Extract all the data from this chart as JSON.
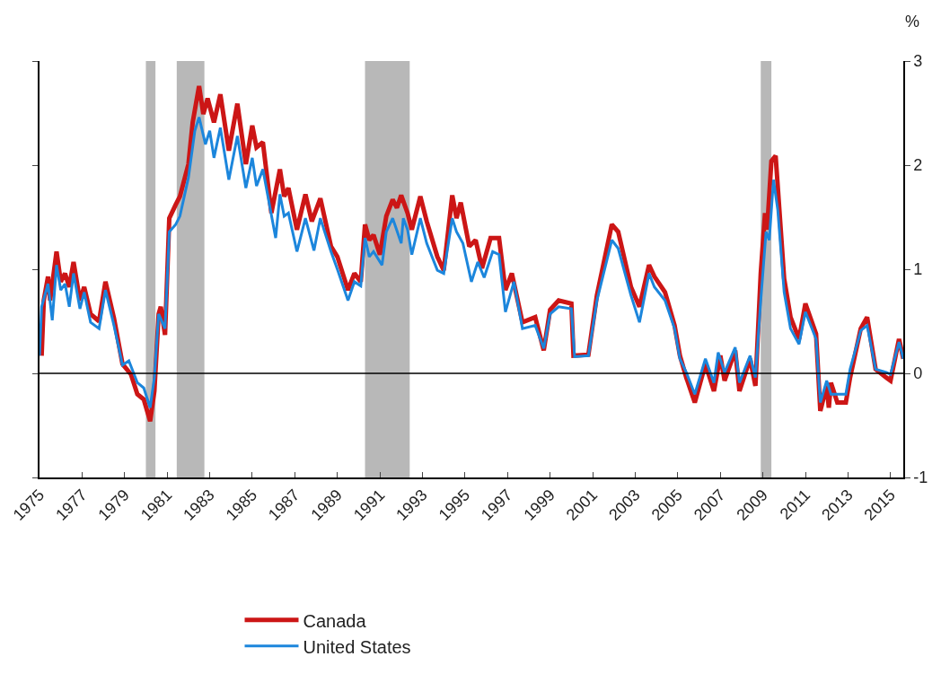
{
  "chart_data": {
    "type": "line",
    "ylabel": "%",
    "xlim": [
      1975,
      2015.6
    ],
    "xticks": [
      1975,
      1977,
      1979,
      1981,
      1983,
      1985,
      1987,
      1989,
      1991,
      1993,
      1995,
      1997,
      1999,
      2001,
      2003,
      2005,
      2007,
      2009,
      2011,
      2013,
      2015
    ],
    "ylim": [
      -1,
      3
    ],
    "yticks": [
      -1,
      0,
      1,
      2,
      3
    ],
    "grid": false,
    "legend": "bottom",
    "line_style": "solid",
    "marker": "none",
    "ref_lines": [
      {
        "axis": "y",
        "value": 0,
        "color": "#000000"
      }
    ],
    "bands": [
      {
        "axis": "x",
        "from": 1980.0,
        "to": 1980.45,
        "color": "#b8b8b8"
      },
      {
        "axis": "x",
        "from": 1981.45,
        "to": 1982.75,
        "color": "#b8b8b8"
      },
      {
        "axis": "x",
        "from": 1990.3,
        "to": 1992.4,
        "color": "#b8b8b8"
      },
      {
        "axis": "x",
        "from": 2008.9,
        "to": 2009.4,
        "color": "#b8b8b8"
      }
    ],
    "series": [
      {
        "name": "Canada",
        "color": "#cc1616",
        "x": [
          1975.1,
          1975.2,
          1975.4,
          1975.5,
          1975.8,
          1976.0,
          1976.2,
          1976.4,
          1976.6,
          1976.9,
          1977.1,
          1977.4,
          1977.8,
          1978.1,
          1978.5,
          1978.9,
          1979.3,
          1979.6,
          1979.9,
          1980.2,
          1980.4,
          1980.6,
          1980.7,
          1980.9,
          1981.1,
          1981.4,
          1981.6,
          1982.0,
          1982.2,
          1982.5,
          1982.7,
          1982.9,
          1983.2,
          1983.5,
          1983.9,
          1984.3,
          1984.7,
          1985.0,
          1985.2,
          1985.5,
          1985.9,
          1986.3,
          1986.5,
          1986.7,
          1987.1,
          1987.5,
          1987.8,
          1988.2,
          1988.7,
          1989.0,
          1989.5,
          1989.8,
          1990.1,
          1990.3,
          1990.5,
          1990.7,
          1991.0,
          1991.3,
          1991.6,
          1991.8,
          1992.0,
          1992.3,
          1992.5,
          1992.9,
          1993.2,
          1993.7,
          1994.0,
          1994.4,
          1994.6,
          1994.8,
          1995.2,
          1995.5,
          1995.8,
          1996.2,
          1996.6,
          1996.9,
          1997.2,
          1997.7,
          1998.3,
          1998.7,
          1999.0,
          1999.4,
          2000.0,
          2000.1,
          2000.8,
          2001.2,
          2001.9,
          2002.2,
          2002.8,
          2003.2,
          2003.65,
          2003.9,
          2004.4,
          2004.85,
          2005.1,
          2005.4,
          2005.8,
          2006.3,
          2006.7,
          2007.0,
          2007.2,
          2007.7,
          2007.9,
          2008.4,
          2008.65,
          2008.9,
          2009.1,
          2009.2,
          2009.4,
          2009.6,
          2010.0,
          2010.3,
          2010.7,
          2011.0,
          2011.5,
          2011.7,
          2012.0,
          2012.1,
          2012.2,
          2012.5,
          2012.9,
          2013.1,
          2013.6,
          2013.9,
          2014.3,
          2014.8,
          2015.0,
          2015.4,
          2015.6
        ],
        "values": [
          0.17,
          0.7,
          0.93,
          0.7,
          1.17,
          0.88,
          0.96,
          0.83,
          1.07,
          0.7,
          0.83,
          0.57,
          0.5,
          0.88,
          0.53,
          0.09,
          -0.01,
          -0.2,
          -0.25,
          -0.46,
          -0.17,
          0.57,
          0.64,
          0.37,
          1.49,
          1.62,
          1.7,
          2.01,
          2.41,
          2.76,
          2.49,
          2.64,
          2.41,
          2.68,
          2.14,
          2.59,
          2.01,
          2.38,
          2.17,
          2.22,
          1.54,
          1.96,
          1.7,
          1.78,
          1.38,
          1.72,
          1.46,
          1.68,
          1.22,
          1.12,
          0.8,
          0.96,
          0.88,
          1.43,
          1.28,
          1.33,
          1.14,
          1.51,
          1.67,
          1.59,
          1.71,
          1.54,
          1.38,
          1.7,
          1.46,
          1.12,
          0.99,
          1.71,
          1.49,
          1.64,
          1.22,
          1.28,
          1.01,
          1.3,
          1.3,
          0.8,
          0.96,
          0.49,
          0.54,
          0.22,
          0.61,
          0.7,
          0.67,
          0.17,
          0.18,
          0.75,
          1.43,
          1.36,
          0.83,
          0.64,
          1.04,
          0.93,
          0.78,
          0.46,
          0.17,
          -0.04,
          -0.28,
          0.09,
          -0.17,
          0.17,
          -0.07,
          0.22,
          -0.17,
          0.14,
          -0.12,
          0.96,
          1.54,
          1.38,
          2.04,
          2.09,
          0.91,
          0.54,
          0.33,
          0.67,
          0.38,
          -0.36,
          -0.12,
          -0.33,
          -0.09,
          -0.28,
          -0.28,
          -0.04,
          0.43,
          0.54,
          0.04,
          -0.04,
          -0.07,
          0.33,
          0.14
        ]
      },
      {
        "name": "United States",
        "color": "#1c86dc",
        "x": [
          1975.0,
          1975.1,
          1975.4,
          1975.6,
          1975.8,
          1976.0,
          1976.2,
          1976.4,
          1976.6,
          1976.9,
          1977.1,
          1977.4,
          1977.8,
          1978.1,
          1978.5,
          1978.9,
          1979.2,
          1979.6,
          1979.9,
          1980.2,
          1980.4,
          1980.6,
          1980.9,
          1981.1,
          1981.4,
          1981.6,
          1982.0,
          1982.3,
          1982.5,
          1982.8,
          1983.0,
          1983.2,
          1983.5,
          1983.9,
          1984.3,
          1984.7,
          1985.0,
          1985.2,
          1985.5,
          1986.1,
          1986.3,
          1986.5,
          1986.7,
          1987.1,
          1987.5,
          1987.9,
          1988.2,
          1988.7,
          1989.0,
          1989.5,
          1989.8,
          1990.1,
          1990.3,
          1990.5,
          1990.7,
          1991.1,
          1991.3,
          1991.6,
          1992.0,
          1992.1,
          1992.3,
          1992.5,
          1992.9,
          1993.2,
          1993.7,
          1994.0,
          1994.4,
          1994.6,
          1994.9,
          1995.3,
          1995.6,
          1995.9,
          1996.3,
          1996.6,
          1996.9,
          1997.3,
          1997.7,
          1998.3,
          1998.7,
          1999.0,
          1999.4,
          2000.0,
          2000.15,
          2000.8,
          2001.2,
          2001.9,
          2002.2,
          2002.8,
          2003.2,
          2003.65,
          2003.9,
          2004.4,
          2004.85,
          2005.1,
          2005.4,
          2005.8,
          2006.3,
          2006.7,
          2006.9,
          2007.2,
          2007.7,
          2007.9,
          2008.4,
          2008.65,
          2008.9,
          2009.15,
          2009.3,
          2009.5,
          2009.7,
          2010.0,
          2010.3,
          2010.7,
          2011.0,
          2011.5,
          2011.7,
          2012.0,
          2012.2,
          2012.5,
          2012.9,
          2013.1,
          2013.6,
          2013.9,
          2014.3,
          2014.8,
          2015.0,
          2015.4,
          2015.6
        ],
        "values": [
          0.17,
          0.64,
          0.86,
          0.51,
          1.04,
          0.8,
          0.86,
          0.64,
          0.96,
          0.62,
          0.78,
          0.49,
          0.43,
          0.8,
          0.46,
          0.08,
          0.12,
          -0.09,
          -0.14,
          -0.33,
          -0.04,
          0.57,
          0.43,
          1.36,
          1.43,
          1.51,
          1.88,
          2.33,
          2.46,
          2.2,
          2.33,
          2.07,
          2.36,
          1.86,
          2.28,
          1.78,
          2.07,
          1.8,
          1.96,
          1.3,
          1.72,
          1.51,
          1.54,
          1.17,
          1.49,
          1.18,
          1.49,
          1.17,
          1.0,
          0.7,
          0.88,
          0.84,
          1.3,
          1.12,
          1.17,
          1.04,
          1.36,
          1.49,
          1.25,
          1.49,
          1.38,
          1.14,
          1.49,
          1.25,
          0.99,
          0.96,
          1.49,
          1.36,
          1.25,
          0.88,
          1.07,
          0.92,
          1.17,
          1.14,
          0.59,
          0.88,
          0.43,
          0.46,
          0.24,
          0.57,
          0.64,
          0.62,
          0.16,
          0.17,
          0.7,
          1.28,
          1.2,
          0.75,
          0.49,
          0.96,
          0.83,
          0.7,
          0.43,
          0.14,
          0.01,
          -0.2,
          0.14,
          -0.09,
          0.2,
          0.01,
          0.25,
          -0.09,
          0.17,
          -0.04,
          0.7,
          1.36,
          1.28,
          1.86,
          1.57,
          0.78,
          0.43,
          0.28,
          0.59,
          0.33,
          -0.28,
          -0.07,
          -0.2,
          -0.2,
          -0.2,
          0.04,
          0.41,
          0.46,
          0.04,
          0.01,
          -0.01,
          0.3,
          0.14
        ]
      }
    ]
  }
}
